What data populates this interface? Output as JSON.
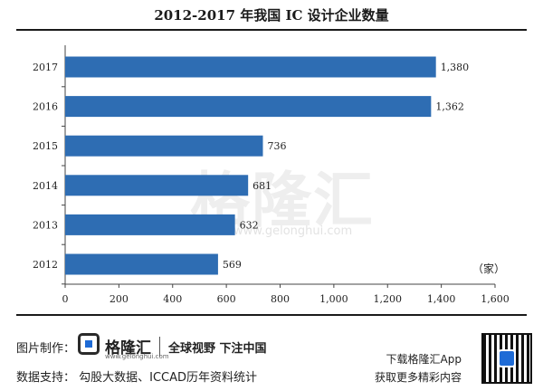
{
  "chart_data": {
    "type": "bar",
    "orientation": "horizontal",
    "title": "2012-2017 年我国 IC 设计企业数量",
    "categories": [
      "2017",
      "2016",
      "2015",
      "2014",
      "2013",
      "2012"
    ],
    "values": [
      1380,
      1362,
      736,
      681,
      632,
      569
    ],
    "value_labels": [
      "1,380",
      "1,362",
      "736",
      "681",
      "632",
      "569"
    ],
    "xticks": [
      "0",
      "200",
      "400",
      "600",
      "800",
      "1,000",
      "1,200",
      "1,400",
      "1,600"
    ],
    "xlim": [
      0,
      1600
    ],
    "unit": "（家）",
    "grid": false,
    "bar_color": "#2e6db3"
  },
  "watermark": {
    "text": "格隆汇",
    "url": "www.gelonghui.com"
  },
  "footer": {
    "credit_label": "图片制作：",
    "brand": "格隆汇",
    "brand_url": "www.gelonghui.com",
    "slogan": "全球视野 下注中国",
    "source": "数据支持：  勾股大数据、ICCAD历年资料统计",
    "download_1": "下载格隆汇App",
    "download_2": "获取更多精彩内容"
  }
}
